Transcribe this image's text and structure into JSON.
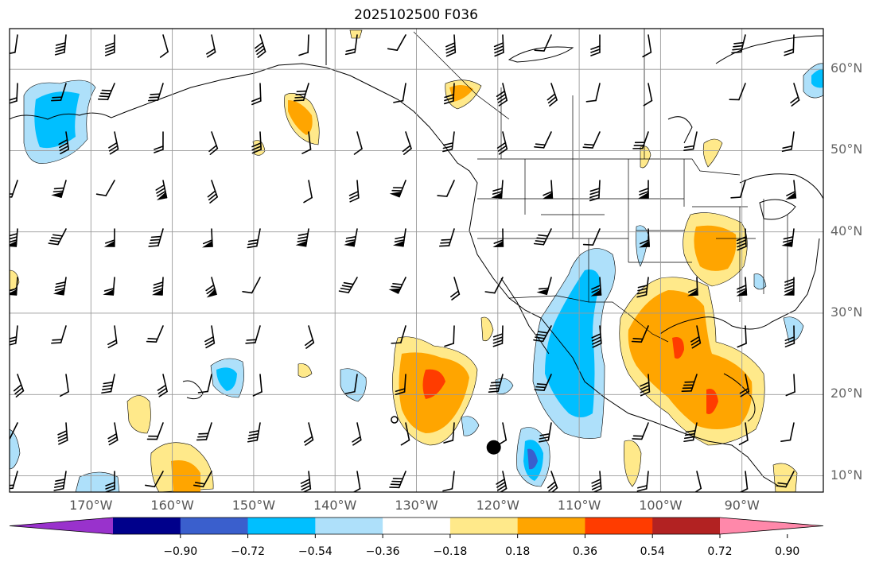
{
  "title": "2025102500 F036",
  "map": {
    "projection": "equirectangular",
    "lon_range": [
      -180,
      -80
    ],
    "lat_range": [
      8,
      65
    ],
    "lon_ticks": [
      -170,
      -160,
      -150,
      -140,
      -130,
      -120,
      -110,
      -100,
      -90
    ],
    "lon_tick_labels": [
      "170°W",
      "160°W",
      "150°W",
      "140°W",
      "130°W",
      "120°W",
      "110°W",
      "100°W",
      "90°W"
    ],
    "lat_ticks": [
      10,
      20,
      30,
      40,
      50,
      60
    ],
    "lat_tick_labels": [
      "10°N",
      "20°N",
      "30°N",
      "40°N",
      "50°N",
      "60°N"
    ],
    "grid": true,
    "marker": {
      "lon": -120.5,
      "lat": 13.5,
      "shape": "filled-circle"
    },
    "small_marker": {
      "lon": -132.7,
      "lat": 16.9,
      "shape": "open-circle"
    }
  },
  "colorbar": {
    "orientation": "horizontal",
    "extend": "both",
    "levels": [
      -0.9,
      -0.72,
      -0.54,
      -0.36,
      -0.18,
      0.18,
      0.36,
      0.54,
      0.72,
      0.9
    ],
    "tick_labels": [
      "−0.90",
      "−0.72",
      "−0.54",
      "−0.36",
      "−0.18",
      "0.18",
      "0.36",
      "0.54",
      "0.72",
      "0.90"
    ],
    "colors": [
      "#9932cc",
      "#00008b",
      "#3a5fcd",
      "#00bfff",
      "#aee0fa",
      "#ffffff",
      "#ffe98a",
      "#ffa500",
      "#ff3c00",
      "#b22222",
      "#ff88aa"
    ]
  }
}
